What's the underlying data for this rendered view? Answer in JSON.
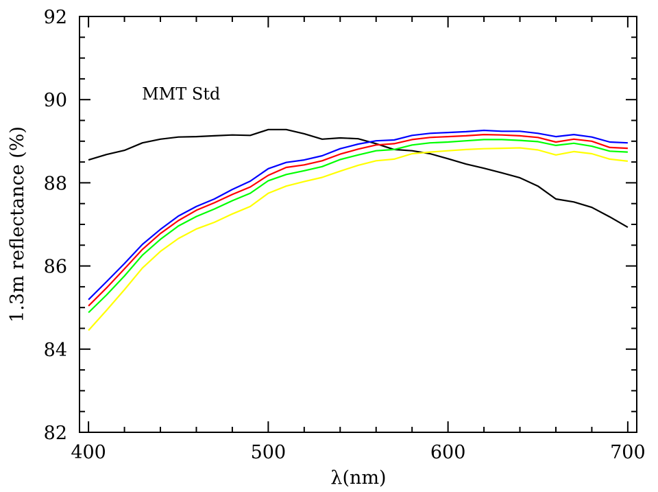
{
  "chart_data": {
    "type": "line",
    "title": "",
    "xlabel": "λ(nm)",
    "ylabel": "1.3m reflectance (%)",
    "xlim": [
      395,
      705
    ],
    "ylim": [
      82,
      92
    ],
    "xticks": [
      400,
      500,
      600,
      700
    ],
    "xtick_labels": [
      "400",
      "500",
      "600",
      "700"
    ],
    "x_minor_step": 20,
    "yticks": [
      82,
      84,
      86,
      88,
      90,
      92
    ],
    "ytick_labels": [
      "82",
      "84",
      "86",
      "88",
      "90",
      "92"
    ],
    "y_minor_step": 0.5,
    "grid": false,
    "legend": null,
    "annotations": [
      {
        "text": "MMT Std",
        "x": 450,
        "y": 90.0,
        "near_series": "MMT Std"
      }
    ],
    "x": [
      400,
      410,
      420,
      430,
      440,
      450,
      460,
      470,
      480,
      490,
      500,
      510,
      520,
      530,
      540,
      550,
      560,
      570,
      580,
      590,
      600,
      610,
      620,
      630,
      640,
      650,
      660,
      670,
      680,
      690,
      700
    ],
    "series": [
      {
        "name": "MMT Std",
        "color": "#000000",
        "values": [
          88.55,
          88.68,
          88.78,
          88.96,
          89.05,
          89.1,
          89.11,
          89.13,
          89.15,
          89.14,
          89.28,
          89.28,
          89.18,
          89.05,
          89.08,
          89.06,
          88.94,
          88.8,
          88.77,
          88.7,
          88.58,
          88.45,
          88.35,
          88.24,
          88.12,
          87.92,
          87.61,
          87.54,
          87.41,
          87.18,
          86.93
        ]
      },
      {
        "name": "blue",
        "color": "#0000ff",
        "values": [
          85.19,
          85.62,
          86.06,
          86.52,
          86.88,
          87.2,
          87.43,
          87.61,
          87.84,
          88.04,
          88.34,
          88.49,
          88.55,
          88.65,
          88.82,
          88.93,
          89.01,
          89.03,
          89.14,
          89.19,
          89.21,
          89.23,
          89.26,
          89.24,
          89.24,
          89.19,
          89.11,
          89.16,
          89.1,
          88.98,
          88.96
        ]
      },
      {
        "name": "red",
        "color": "#ff0000",
        "values": [
          85.04,
          85.47,
          85.93,
          86.4,
          86.78,
          87.09,
          87.34,
          87.52,
          87.72,
          87.9,
          88.18,
          88.37,
          88.43,
          88.53,
          88.69,
          88.81,
          88.91,
          88.94,
          89.04,
          89.09,
          89.11,
          89.13,
          89.16,
          89.15,
          89.13,
          89.09,
          88.98,
          89.05,
          89.0,
          88.85,
          88.83
        ]
      },
      {
        "name": "green",
        "color": "#00ff00",
        "values": [
          84.88,
          85.3,
          85.76,
          86.26,
          86.64,
          86.96,
          87.19,
          87.37,
          87.57,
          87.75,
          88.05,
          88.2,
          88.29,
          88.39,
          88.56,
          88.67,
          88.77,
          88.8,
          88.91,
          88.96,
          88.98,
          89.01,
          89.04,
          89.04,
          89.02,
          88.99,
          88.9,
          88.95,
          88.88,
          88.76,
          88.74
        ]
      },
      {
        "name": "yellow",
        "color": "#ffff00",
        "values": [
          84.45,
          84.93,
          85.43,
          85.95,
          86.35,
          86.66,
          86.89,
          87.05,
          87.25,
          87.43,
          87.75,
          87.92,
          88.03,
          88.13,
          88.28,
          88.42,
          88.53,
          88.57,
          88.7,
          88.74,
          88.77,
          88.8,
          88.82,
          88.83,
          88.84,
          88.79,
          88.67,
          88.75,
          88.7,
          88.57,
          88.52
        ]
      }
    ]
  }
}
